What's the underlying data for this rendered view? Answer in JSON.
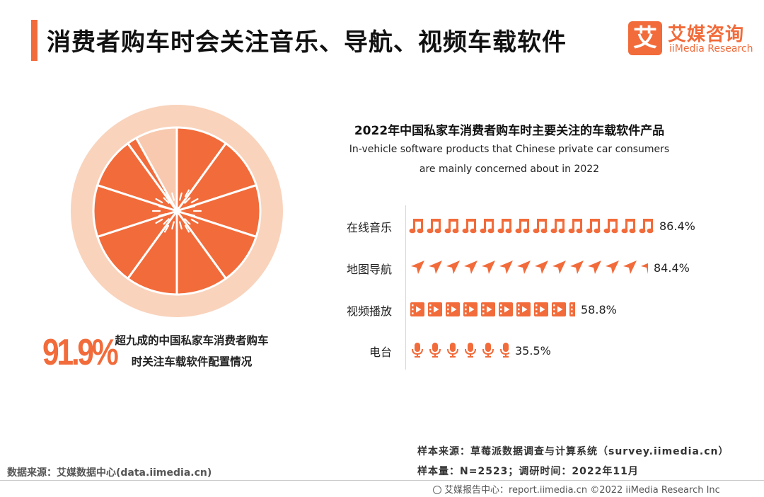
{
  "header": {
    "title": "消费者购车时会关注音乐、导航、视频车载软件",
    "logo_mark": "艾",
    "logo_cn": "艾媒咨询",
    "logo_en": "iiMedia Research"
  },
  "highlight": {
    "value": 91.9,
    "value_text": "91.9%",
    "desc_line1": "超九成的中国私家车消费者购车",
    "desc_line2": "时关注车载软件配置情况"
  },
  "chart_data": {
    "type": "bar",
    "title": "2022年中国私家车消费者购车时主要关注的车载软件产品",
    "subtitle_line1": "In-vehicle software products that Chinese private car consumers",
    "subtitle_line2": "are mainly concerned about in 2022",
    "unit": "%",
    "bars": [
      {
        "category": "在线音乐",
        "value": 86.4,
        "label": "86.4%",
        "icon": "music-note-icon"
      },
      {
        "category": "地图导航",
        "value": 84.4,
        "label": "84.4%",
        "icon": "navigation-arrow-icon"
      },
      {
        "category": "视频播放",
        "value": 58.8,
        "label": "58.8%",
        "icon": "film-play-icon"
      },
      {
        "category": "电台",
        "value": 35.5,
        "label": "35.5%",
        "icon": "microphone-icon"
      }
    ],
    "pie": {
      "value": 91.9,
      "segments": 10,
      "highlight_color": "#f26b3a",
      "remainder_color": "#f8c9ae"
    }
  },
  "colors": {
    "accent": "#f26b3a",
    "light": "#f8c9ae",
    "rim": "#f9d3bc"
  },
  "notes": {
    "sample_source": "样本来源：草莓派数据调查与计算系统（survey.iimedia.cn）",
    "sample_size": "样本量：N=2523；调研时间：2022年11月",
    "data_source": "数据来源：艾媒数据中心(data.iimedia.cn)",
    "footer": "艾媒报告中心：report.iimedia.cn ©2022 iiMedia Research Inc"
  }
}
